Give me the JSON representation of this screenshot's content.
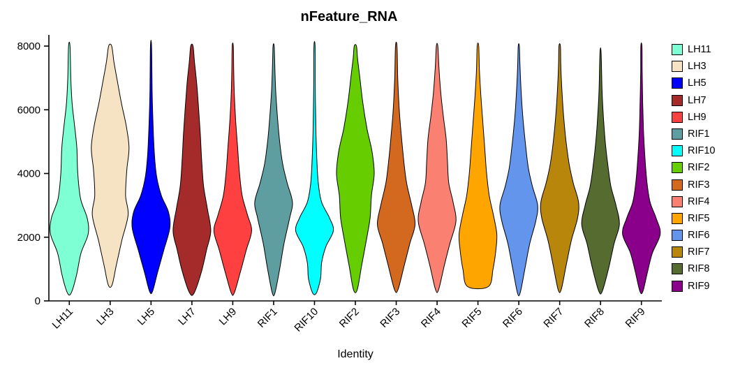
{
  "chart_data": {
    "type": "violin",
    "title": "nFeature_RNA",
    "xlabel": "Identity",
    "ylabel": "",
    "ylim": [
      0,
      8000
    ],
    "yticks": [
      0,
      2000,
      4000,
      6000,
      8000
    ],
    "grid": false,
    "legend_position": "right",
    "categories": [
      "LH11",
      "LH3",
      "LH5",
      "LH7",
      "LH9",
      "RIF1",
      "RIF10",
      "RIF2",
      "RIF3",
      "RIF4",
      "RIF5",
      "RIF6",
      "RIF7",
      "RIF8",
      "RIF9"
    ],
    "series": [
      {
        "name": "LH11",
        "color": "#7FFFD4",
        "profile": [
          [
            250,
            0.1
          ],
          [
            800,
            0.38
          ],
          [
            1500,
            0.62
          ],
          [
            2100,
            1.0
          ],
          [
            2600,
            0.95
          ],
          [
            3200,
            0.6
          ],
          [
            4000,
            0.45
          ],
          [
            4800,
            0.4
          ],
          [
            5500,
            0.28
          ],
          [
            6200,
            0.15
          ],
          [
            7000,
            0.08
          ],
          [
            8000,
            0.04
          ]
        ]
      },
      {
        "name": "LH3",
        "color": "#F6E3C3",
        "profile": [
          [
            500,
            0.1
          ],
          [
            1100,
            0.32
          ],
          [
            1900,
            0.62
          ],
          [
            2700,
            0.95
          ],
          [
            3300,
            0.82
          ],
          [
            4100,
            0.88
          ],
          [
            4800,
            1.0
          ],
          [
            5500,
            0.85
          ],
          [
            6200,
            0.6
          ],
          [
            6900,
            0.38
          ],
          [
            7500,
            0.2
          ],
          [
            8000,
            0.08
          ]
        ]
      },
      {
        "name": "LH5",
        "color": "#0000FF",
        "profile": [
          [
            300,
            0.08
          ],
          [
            900,
            0.35
          ],
          [
            1600,
            0.68
          ],
          [
            2300,
            1.0
          ],
          [
            2800,
            0.92
          ],
          [
            3300,
            0.55
          ],
          [
            3900,
            0.3
          ],
          [
            4600,
            0.18
          ],
          [
            5500,
            0.11
          ],
          [
            6500,
            0.06
          ],
          [
            8000,
            0.03
          ]
        ]
      },
      {
        "name": "LH7",
        "color": "#A52A2A",
        "profile": [
          [
            250,
            0.12
          ],
          [
            900,
            0.5
          ],
          [
            1600,
            0.78
          ],
          [
            2200,
            1.0
          ],
          [
            2900,
            0.82
          ],
          [
            3600,
            0.62
          ],
          [
            4400,
            0.52
          ],
          [
            5200,
            0.45
          ],
          [
            6000,
            0.36
          ],
          [
            6800,
            0.26
          ],
          [
            7500,
            0.14
          ],
          [
            8000,
            0.06
          ]
        ]
      },
      {
        "name": "LH9",
        "color": "#FF4040",
        "profile": [
          [
            250,
            0.08
          ],
          [
            900,
            0.4
          ],
          [
            1600,
            0.72
          ],
          [
            2200,
            1.0
          ],
          [
            2700,
            0.78
          ],
          [
            3300,
            0.5
          ],
          [
            4000,
            0.36
          ],
          [
            4800,
            0.26
          ],
          [
            5600,
            0.16
          ],
          [
            6400,
            0.09
          ],
          [
            7200,
            0.05
          ],
          [
            8000,
            0.03
          ]
        ]
      },
      {
        "name": "RIF1",
        "color": "#5F9EA0",
        "profile": [
          [
            250,
            0.07
          ],
          [
            1000,
            0.32
          ],
          [
            1800,
            0.55
          ],
          [
            2600,
            0.85
          ],
          [
            3100,
            1.0
          ],
          [
            3700,
            0.72
          ],
          [
            4300,
            0.48
          ],
          [
            5000,
            0.32
          ],
          [
            5800,
            0.2
          ],
          [
            6600,
            0.11
          ],
          [
            7400,
            0.06
          ],
          [
            8000,
            0.03
          ]
        ]
      },
      {
        "name": "RIF10",
        "color": "#00FFFF",
        "profile": [
          [
            250,
            0.1
          ],
          [
            700,
            0.32
          ],
          [
            1200,
            0.38
          ],
          [
            1700,
            0.6
          ],
          [
            2200,
            1.0
          ],
          [
            2600,
            0.8
          ],
          [
            3100,
            0.38
          ],
          [
            3700,
            0.2
          ],
          [
            4500,
            0.12
          ],
          [
            5500,
            0.07
          ],
          [
            6800,
            0.04
          ],
          [
            8000,
            0.03
          ]
        ]
      },
      {
        "name": "RIF2",
        "color": "#66CD00",
        "profile": [
          [
            350,
            0.1
          ],
          [
            1100,
            0.33
          ],
          [
            1900,
            0.58
          ],
          [
            2600,
            0.78
          ],
          [
            3300,
            0.85
          ],
          [
            4000,
            1.0
          ],
          [
            4700,
            0.88
          ],
          [
            5400,
            0.62
          ],
          [
            6200,
            0.4
          ],
          [
            7000,
            0.24
          ],
          [
            7600,
            0.12
          ],
          [
            8000,
            0.06
          ]
        ]
      },
      {
        "name": "RIF3",
        "color": "#D2691E",
        "profile": [
          [
            350,
            0.09
          ],
          [
            1100,
            0.42
          ],
          [
            1800,
            0.72
          ],
          [
            2400,
            1.0
          ],
          [
            3000,
            0.82
          ],
          [
            3700,
            0.55
          ],
          [
            4400,
            0.4
          ],
          [
            5200,
            0.27
          ],
          [
            6000,
            0.16
          ],
          [
            7000,
            0.08
          ],
          [
            8000,
            0.04
          ]
        ]
      },
      {
        "name": "RIF4",
        "color": "#FA8072",
        "profile": [
          [
            350,
            0.08
          ],
          [
            1100,
            0.38
          ],
          [
            1800,
            0.68
          ],
          [
            2500,
            1.0
          ],
          [
            3100,
            0.85
          ],
          [
            3700,
            0.62
          ],
          [
            4400,
            0.55
          ],
          [
            5100,
            0.48
          ],
          [
            5800,
            0.33
          ],
          [
            6500,
            0.2
          ],
          [
            7300,
            0.1
          ],
          [
            8000,
            0.04
          ]
        ]
      },
      {
        "name": "RIF5",
        "color": "#FFA500",
        "profile": [
          [
            450,
            0.55
          ],
          [
            1000,
            0.8
          ],
          [
            1600,
            0.95
          ],
          [
            2100,
            1.0
          ],
          [
            2700,
            0.82
          ],
          [
            3300,
            0.6
          ],
          [
            4000,
            0.46
          ],
          [
            4800,
            0.36
          ],
          [
            5600,
            0.26
          ],
          [
            6400,
            0.16
          ],
          [
            7200,
            0.08
          ],
          [
            8000,
            0.04
          ]
        ]
      },
      {
        "name": "RIF6",
        "color": "#6495ED",
        "profile": [
          [
            250,
            0.07
          ],
          [
            1000,
            0.32
          ],
          [
            1800,
            0.58
          ],
          [
            2500,
            0.9
          ],
          [
            3000,
            1.0
          ],
          [
            3600,
            0.72
          ],
          [
            4200,
            0.5
          ],
          [
            5000,
            0.34
          ],
          [
            5800,
            0.21
          ],
          [
            6600,
            0.12
          ],
          [
            7400,
            0.06
          ],
          [
            8000,
            0.03
          ]
        ]
      },
      {
        "name": "RIF7",
        "color": "#B8860B",
        "profile": [
          [
            350,
            0.08
          ],
          [
            1100,
            0.34
          ],
          [
            1900,
            0.62
          ],
          [
            2600,
            0.95
          ],
          [
            3100,
            1.0
          ],
          [
            3700,
            0.72
          ],
          [
            4300,
            0.5
          ],
          [
            5000,
            0.34
          ],
          [
            5800,
            0.21
          ],
          [
            6600,
            0.12
          ],
          [
            7400,
            0.06
          ],
          [
            8000,
            0.04
          ]
        ]
      },
      {
        "name": "RIF8",
        "color": "#556B2F",
        "profile": [
          [
            300,
            0.09
          ],
          [
            1000,
            0.42
          ],
          [
            1800,
            0.72
          ],
          [
            2400,
            1.0
          ],
          [
            3000,
            0.82
          ],
          [
            3600,
            0.55
          ],
          [
            4300,
            0.38
          ],
          [
            5000,
            0.25
          ],
          [
            5800,
            0.15
          ],
          [
            6600,
            0.08
          ],
          [
            7800,
            0.03
          ]
        ]
      },
      {
        "name": "RIF9",
        "color": "#8B008B",
        "profile": [
          [
            300,
            0.08
          ],
          [
            900,
            0.32
          ],
          [
            1500,
            0.58
          ],
          [
            2100,
            1.0
          ],
          [
            2600,
            0.78
          ],
          [
            3100,
            0.46
          ],
          [
            3700,
            0.3
          ],
          [
            4400,
            0.2
          ],
          [
            5200,
            0.12
          ],
          [
            6200,
            0.07
          ],
          [
            7200,
            0.04
          ],
          [
            8000,
            0.03
          ]
        ]
      }
    ]
  }
}
